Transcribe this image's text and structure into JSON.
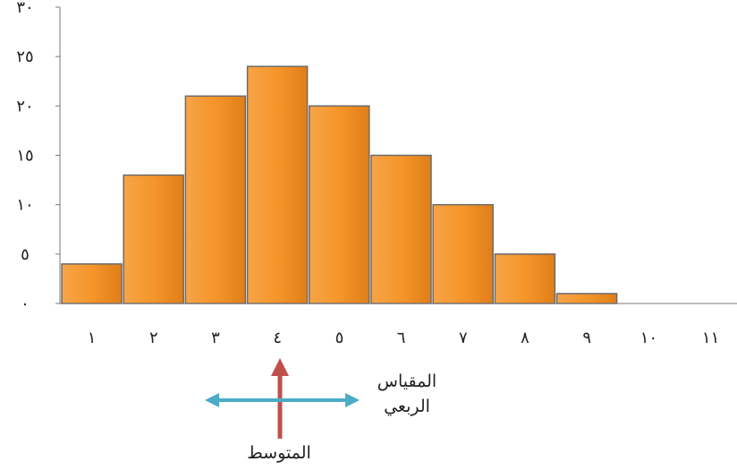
{
  "chart_data": {
    "type": "bar",
    "categories": [
      "١",
      "٢",
      "٣",
      "٤",
      "٥",
      "٦",
      "٧",
      "٨",
      "٩",
      "١٠",
      "١١"
    ],
    "values": [
      4,
      13,
      21,
      24,
      20,
      15,
      10,
      5,
      1,
      0,
      0
    ],
    "yticks": [
      "٠",
      "٥",
      "١٠",
      "١٥",
      "٢٠",
      "٢٥",
      "٣٠"
    ],
    "ylim": [
      0,
      30
    ],
    "title": "",
    "xlabel": "",
    "ylabel": "",
    "grid": false,
    "bar_color": "#f5952a",
    "bar_edge_color": "#6b6b6b"
  },
  "annotations": {
    "mean_label": "المتوسط",
    "quartile_label_line1": "المقياس",
    "quartile_label_line2": "الربعي",
    "mean_arrow_color": "#c0504d",
    "quartile_arrow_color": "#4bacc6"
  }
}
